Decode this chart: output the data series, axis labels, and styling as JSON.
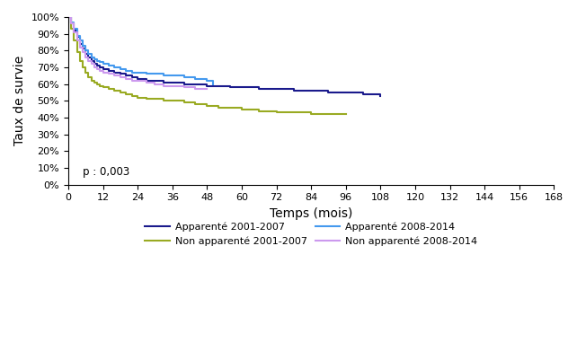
{
  "title": "",
  "xlabel": "Temps (mois)",
  "ylabel": "Taux de survie",
  "p_text": "p : 0,003",
  "xlim": [
    0,
    168
  ],
  "ylim": [
    0,
    1.0
  ],
  "xticks": [
    0,
    12,
    24,
    36,
    48,
    60,
    72,
    84,
    96,
    108,
    120,
    132,
    144,
    156,
    168
  ],
  "yticks": [
    0,
    0.1,
    0.2,
    0.3,
    0.4,
    0.5,
    0.6,
    0.7,
    0.8,
    0.9,
    1.0
  ],
  "legend_entries": [
    "Apparenté 2001-2007",
    "Apparenté 2008-2014",
    "Non apparenté 2001-2007",
    "Non apparenté 2008-2014"
  ],
  "colors": {
    "apparente_2001": "#1a1a8c",
    "apparente_2008": "#4499ee",
    "non_apparente_2001": "#99aa22",
    "non_apparente_2008": "#cc99ee"
  },
  "curves": {
    "apparente_2001": {
      "x": [
        0,
        1,
        2,
        3,
        4,
        5,
        6,
        7,
        8,
        9,
        10,
        11,
        12,
        14,
        16,
        18,
        20,
        22,
        24,
        27,
        30,
        33,
        36,
        40,
        44,
        48,
        52,
        56,
        60,
        66,
        72,
        78,
        84,
        90,
        96,
        102,
        108
      ],
      "y": [
        1.0,
        0.96,
        0.92,
        0.88,
        0.84,
        0.81,
        0.78,
        0.76,
        0.74,
        0.72,
        0.71,
        0.7,
        0.69,
        0.68,
        0.67,
        0.66,
        0.65,
        0.64,
        0.63,
        0.62,
        0.62,
        0.61,
        0.61,
        0.6,
        0.6,
        0.59,
        0.59,
        0.58,
        0.58,
        0.57,
        0.57,
        0.56,
        0.56,
        0.55,
        0.55,
        0.54,
        0.53
      ]
    },
    "apparente_2008": {
      "x": [
        0,
        1,
        2,
        3,
        4,
        5,
        6,
        7,
        8,
        9,
        10,
        11,
        12,
        14,
        16,
        18,
        20,
        22,
        24,
        27,
        30,
        33,
        36,
        40,
        44,
        48,
        50
      ],
      "y": [
        1.0,
        0.97,
        0.93,
        0.89,
        0.86,
        0.83,
        0.8,
        0.78,
        0.76,
        0.75,
        0.74,
        0.73,
        0.72,
        0.71,
        0.7,
        0.69,
        0.68,
        0.67,
        0.67,
        0.66,
        0.66,
        0.65,
        0.65,
        0.64,
        0.63,
        0.62,
        0.6
      ]
    },
    "non_apparente_2001": {
      "x": [
        0,
        1,
        2,
        3,
        4,
        5,
        6,
        7,
        8,
        9,
        10,
        11,
        12,
        14,
        16,
        18,
        20,
        22,
        24,
        27,
        30,
        33,
        36,
        40,
        44,
        48,
        52,
        56,
        60,
        66,
        72,
        78,
        84,
        90,
        96
      ],
      "y": [
        1.0,
        0.93,
        0.86,
        0.79,
        0.74,
        0.7,
        0.67,
        0.64,
        0.62,
        0.61,
        0.6,
        0.59,
        0.58,
        0.57,
        0.56,
        0.55,
        0.54,
        0.53,
        0.52,
        0.51,
        0.51,
        0.5,
        0.5,
        0.49,
        0.48,
        0.47,
        0.46,
        0.46,
        0.45,
        0.44,
        0.43,
        0.43,
        0.42,
        0.42,
        0.42
      ]
    },
    "non_apparente_2008": {
      "x": [
        0,
        1,
        2,
        3,
        4,
        5,
        6,
        7,
        8,
        9,
        10,
        11,
        12,
        14,
        16,
        18,
        20,
        22,
        24,
        27,
        30,
        33,
        36,
        40,
        44,
        48
      ],
      "y": [
        1.0,
        0.96,
        0.91,
        0.86,
        0.82,
        0.79,
        0.76,
        0.74,
        0.72,
        0.7,
        0.69,
        0.68,
        0.67,
        0.66,
        0.65,
        0.64,
        0.63,
        0.62,
        0.62,
        0.61,
        0.6,
        0.59,
        0.59,
        0.58,
        0.57,
        0.57
      ]
    }
  }
}
